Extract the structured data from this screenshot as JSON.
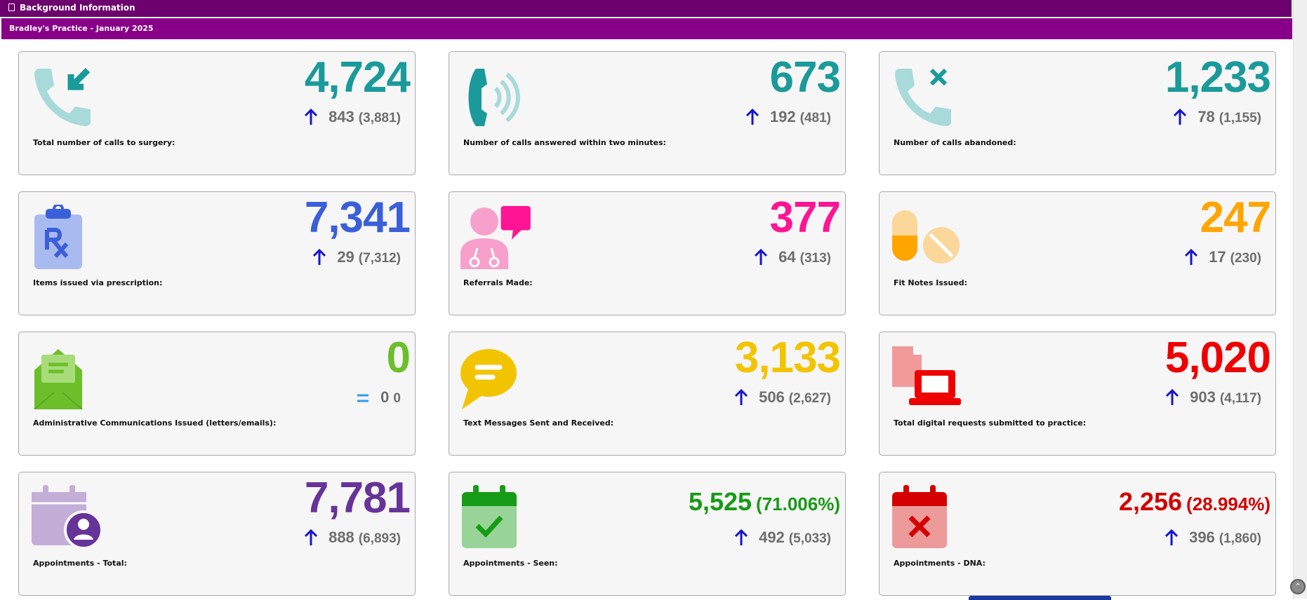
{
  "header": {
    "title": "Background Information"
  },
  "practice_bar": {
    "title": "Bradley's Practice - January 2025"
  },
  "colors": {
    "header_purple": "#6c006c",
    "practice_purple": "#880088",
    "arrow_blue": "#1515d0",
    "teal": "#1a9a9a",
    "blue": "#3b5fd9",
    "pink": "#ff1493",
    "orange": "#ffa500",
    "green": "#6cbf2a",
    "yellow": "#f2c400",
    "red": "#ee0000",
    "purple": "#663399",
    "seen_green": "#169b16",
    "dna_red": "#d40000"
  },
  "cards": [
    {
      "label": "Total number of calls to surgery:",
      "value": "4,724",
      "delta": "843",
      "previous": "(3,881)",
      "icon": "phone-incoming-icon",
      "value_color": "#1a9a9a"
    },
    {
      "label": "Number of calls answered within two minutes:",
      "value": "673",
      "delta": "192",
      "previous": "(481)",
      "icon": "phone-ringing-icon",
      "value_color": "#1a9a9a"
    },
    {
      "label": "Number of calls abandoned:",
      "value": "1,233",
      "delta": "78",
      "previous": "(1,155)",
      "icon": "phone-missed-icon",
      "value_color": "#1a9a9a"
    },
    {
      "label": "Items issued via prescription:",
      "value": "7,341",
      "delta": "29",
      "previous": "(7,312)",
      "icon": "prescription-clipboard-icon",
      "value_color": "#3b5fd9"
    },
    {
      "label": "Referrals Made:",
      "value": "377",
      "delta": "64",
      "previous": "(313)",
      "icon": "doctor-chat-icon",
      "value_color": "#ff1493"
    },
    {
      "label": "Fit Notes Issued:",
      "value": "247",
      "delta": "17",
      "previous": "(230)",
      "icon": "pills-icon",
      "value_color": "#ffa500"
    },
    {
      "label": "Administrative Communications Issued (letters/emails):",
      "value": "0",
      "delta": "0",
      "previous": "0",
      "icon": "open-envelope-icon",
      "value_color": "#6cbf2a"
    },
    {
      "label": "Text Messages Sent and Received:",
      "value": "3,133",
      "delta": "506",
      "previous": "(2,627)",
      "icon": "chat-bubble-icon",
      "value_color": "#f2c400"
    },
    {
      "label": "Total digital requests submitted to practice:",
      "value": "5,020",
      "delta": "903",
      "previous": "(4,117)",
      "icon": "laptop-document-icon",
      "value_color": "#ee0000"
    },
    {
      "label": "Appointments - Total:",
      "value": "7,781",
      "delta": "888",
      "previous": "(6,893)",
      "icon": "calendar-user-icon",
      "value_color": "#663399"
    },
    {
      "label": "Appointments - Seen:",
      "value": "5,525",
      "percent": "(71.006%)",
      "delta": "492",
      "previous": "(5,033)",
      "icon": "calendar-check-icon",
      "value_color": "#169b16"
    },
    {
      "label": "Appointments - DNA:",
      "value": "2,256",
      "percent": "(28.994%)",
      "delta": "396",
      "previous": "(1,860)",
      "icon": "calendar-x-icon",
      "value_color": "#d40000"
    }
  ]
}
